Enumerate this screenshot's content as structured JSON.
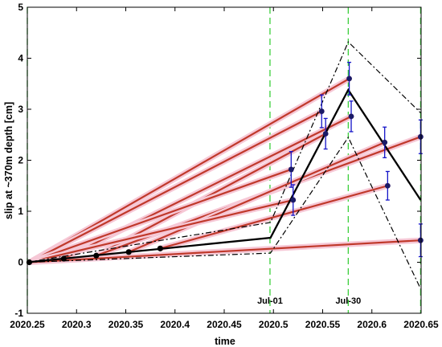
{
  "chart_data": {
    "type": "line",
    "xlabel": "time",
    "ylabel": "slip at ~370m depth [cm]",
    "xlim": [
      2020.25,
      2020.65
    ],
    "ylim": [
      -1,
      5
    ],
    "xticks": [
      2020.25,
      2020.3,
      2020.35,
      2020.4,
      2020.45,
      2020.5,
      2020.55,
      2020.6,
      2020.65
    ],
    "xtick_labels": [
      "2020.25",
      "2020.3",
      "2020.35",
      "2020.4",
      "2020.45",
      "2020.5",
      "2020.55",
      "2020.6",
      "2020.65"
    ],
    "yticks": [
      -1,
      0,
      1,
      2,
      3,
      4,
      5
    ],
    "ytick_labels": [
      "-1",
      "0",
      "1",
      "2",
      "3",
      "4",
      "5"
    ],
    "grid": false,
    "vertical_lines": [
      {
        "x": 2020.25,
        "color": "#3bcf3b"
      },
      {
        "x": 2020.4965,
        "color": "#3bcf3b"
      },
      {
        "x": 2020.576,
        "color": "#3bcf3b"
      },
      {
        "x": 2020.6495,
        "color": "#3bcf3b"
      }
    ],
    "annotations": [
      {
        "text": "Jul-01",
        "x": 2020.4965,
        "y": -0.75
      },
      {
        "text": "Jul-30",
        "x": 2020.576,
        "y": -0.75
      }
    ],
    "model_line": {
      "x": [
        2020.25,
        2020.497,
        2020.576,
        2020.6495
      ],
      "y": [
        0.0,
        0.48,
        3.38,
        1.22
      ],
      "color": "#000000"
    },
    "bounds_upper": {
      "x": [
        2020.25,
        2020.497,
        2020.576,
        2020.6495
      ],
      "y": [
        0.0,
        0.78,
        4.32,
        2.93
      ],
      "color": "#000000"
    },
    "bounds_lower": {
      "x": [
        2020.25,
        2020.497,
        2020.576,
        2020.6495
      ],
      "y": [
        0.0,
        0.18,
        2.45,
        -0.52
      ],
      "color": "#000000"
    },
    "early_points": {
      "x": [
        2020.252,
        2020.287,
        2020.32,
        2020.353,
        2020.385
      ],
      "y": [
        0.0,
        0.07,
        0.13,
        0.2,
        0.27
      ],
      "color": "#000000"
    },
    "observations": {
      "x": [
        2020.518,
        2020.52,
        2020.549,
        2020.553,
        2020.577,
        2020.579,
        2020.613,
        2020.616,
        2020.6495,
        2020.6495
      ],
      "y": [
        1.82,
        1.22,
        2.96,
        2.52,
        3.6,
        2.86,
        2.35,
        1.5,
        2.46,
        0.43
      ],
      "err": [
        0.35,
        0.3,
        0.32,
        0.3,
        0.32,
        0.3,
        0.3,
        0.28,
        0.33,
        0.32
      ],
      "color": "#1a1a66",
      "errcolor": "#1414c8"
    },
    "fit_lines": {
      "color": "#c0392b",
      "segments": [
        {
          "x": [
            2020.252,
            2020.577
          ],
          "y": [
            0.0,
            3.6
          ]
        },
        {
          "x": [
            2020.252,
            2020.549
          ],
          "y": [
            0.0,
            2.96
          ]
        },
        {
          "x": [
            2020.287,
            2020.579
          ],
          "y": [
            0.07,
            2.86
          ]
        },
        {
          "x": [
            2020.32,
            2020.553
          ],
          "y": [
            0.13,
            2.52
          ]
        },
        {
          "x": [
            2020.32,
            2020.6495
          ],
          "y": [
            0.13,
            2.46
          ]
        },
        {
          "x": [
            2020.353,
            2020.613
          ],
          "y": [
            0.2,
            2.35
          ]
        },
        {
          "x": [
            2020.252,
            2020.518
          ],
          "y": [
            0.0,
            1.82
          ]
        },
        {
          "x": [
            2020.385,
            2020.616
          ],
          "y": [
            0.27,
            1.5
          ]
        },
        {
          "x": [
            2020.252,
            2020.52
          ],
          "y": [
            0.0,
            1.22
          ]
        },
        {
          "x": [
            2020.252,
            2020.6495
          ],
          "y": [
            0.0,
            0.43
          ]
        }
      ]
    }
  }
}
